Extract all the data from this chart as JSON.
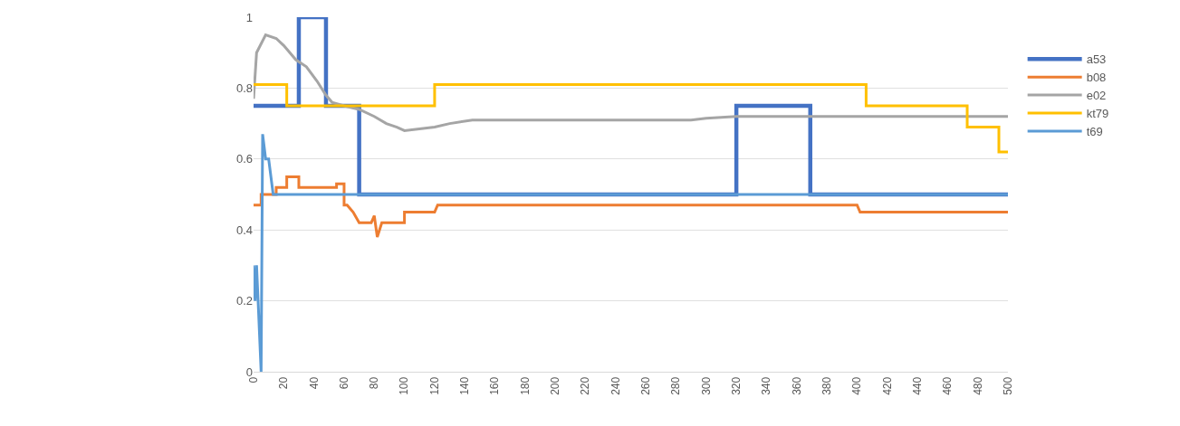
{
  "chart_data": {
    "type": "line",
    "xlim": [
      0,
      500
    ],
    "xticks": [
      0,
      20,
      40,
      60,
      80,
      100,
      120,
      140,
      160,
      180,
      200,
      220,
      240,
      260,
      280,
      300,
      320,
      340,
      360,
      380,
      400,
      420,
      440,
      460,
      480,
      500
    ],
    "ylim": [
      0,
      1
    ],
    "yticks": [
      0,
      0.2,
      0.4,
      0.6,
      0.8,
      1
    ],
    "grid": "y",
    "legend": "right",
    "marker": "none",
    "line_style": "solid",
    "series": [
      {
        "name": "a53",
        "color": "#4472c4",
        "x": [
          0,
          30,
          30,
          48,
          48,
          70,
          70,
          320,
          320,
          369,
          369,
          500
        ],
        "values": [
          0.75,
          0.75,
          1,
          1,
          0.75,
          0.75,
          0.5,
          0.5,
          0.75,
          0.75,
          0.5,
          0.5
        ]
      },
      {
        "name": "b08",
        "color": "#ed7d31",
        "x": [
          0,
          5,
          5,
          15,
          15,
          22,
          22,
          30,
          30,
          55,
          55,
          60,
          60,
          62,
          66,
          70,
          78,
          80,
          82,
          85,
          100,
          100,
          120,
          122,
          400,
          402,
          500
        ],
        "values": [
          0.47,
          0.47,
          0.5,
          0.5,
          0.52,
          0.52,
          0.55,
          0.55,
          0.52,
          0.52,
          0.53,
          0.53,
          0.47,
          0.47,
          0.45,
          0.42,
          0.42,
          0.44,
          0.38,
          0.42,
          0.42,
          0.45,
          0.45,
          0.47,
          0.47,
          0.45,
          0.45
        ]
      },
      {
        "name": "e02",
        "color": "#a5a5a5",
        "x": [
          0,
          2,
          8,
          15,
          20,
          28,
          35,
          42,
          48,
          52,
          60,
          70,
          80,
          88,
          95,
          100,
          120,
          130,
          145,
          290,
          300,
          320,
          500
        ],
        "values": [
          0.77,
          0.9,
          0.95,
          0.94,
          0.92,
          0.88,
          0.86,
          0.82,
          0.78,
          0.76,
          0.75,
          0.74,
          0.72,
          0.7,
          0.69,
          0.68,
          0.69,
          0.7,
          0.71,
          0.71,
          0.715,
          0.72,
          0.72
        ]
      },
      {
        "name": "kt79",
        "color": "#ffc000",
        "x": [
          0,
          22,
          22,
          120,
          120,
          406,
          406,
          473,
          473,
          494,
          494,
          500
        ],
        "values": [
          0.81,
          0.81,
          0.75,
          0.75,
          0.81,
          0.81,
          0.75,
          0.75,
          0.69,
          0.69,
          0.62,
          0.62
        ]
      },
      {
        "name": "t69",
        "color": "#5b9bd5",
        "x": [
          0,
          1,
          2,
          5,
          6,
          8,
          10,
          13,
          500
        ],
        "values": [
          0.3,
          0.2,
          0.3,
          0,
          0.67,
          0.6,
          0.6,
          0.5,
          0.5
        ]
      }
    ]
  }
}
